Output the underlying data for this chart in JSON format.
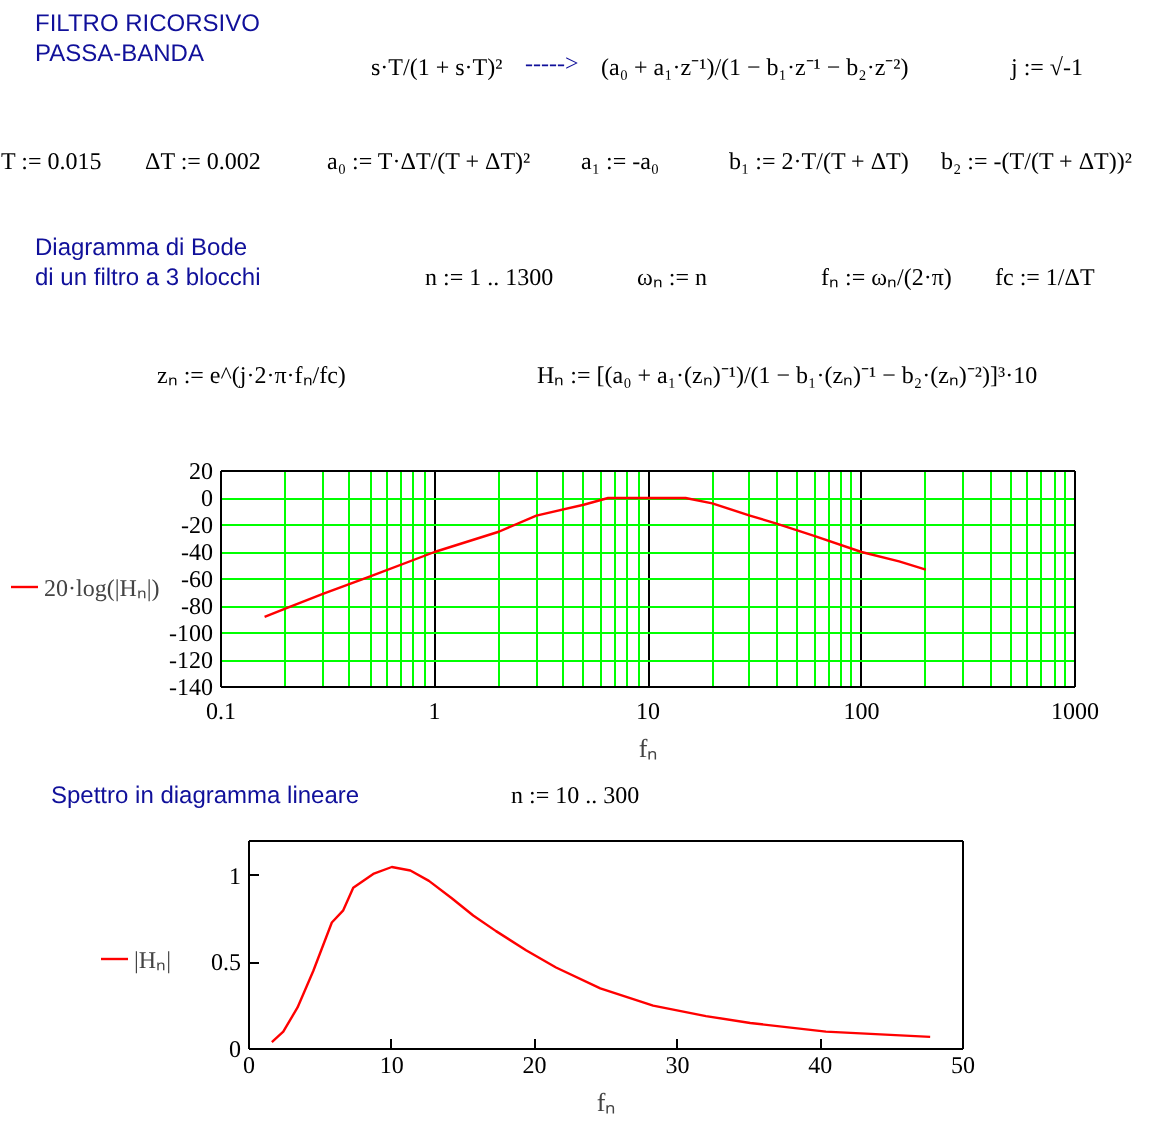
{
  "chart_data": [
    {
      "type": "line",
      "title": "FILTRO RICORSIVO\nPASSA-BANDA",
      "subtitle": "Diagramma di Bode\ndi un filtro a 3 blocchi",
      "xlabel": "fₙ",
      "annotations": [
        "s·T/(1 + s·T)²",
        "----->",
        "(a₀ + a₁·z⁻¹)/(1 − b₁·z⁻¹ − b₂·z⁻²)",
        "j := √-1",
        "T := 0.015",
        "ΔT := 0.002",
        "a₀ := T·ΔT/(T + ΔT)²",
        "a₁ := -a₀",
        "b₁ := 2·T/(T + ΔT)",
        "b₂ := -(T/(T + ΔT))²",
        "n := 1 .. 1300",
        "ωₙ := n",
        "fₙ := ωₙ/(2·π)",
        "fc := 1/ΔT",
        "zₙ := e^(j·2·π·fₙ/fc)",
        "Hₙ := [(a₀ + a₁·(zₙ)⁻¹)/(1 − b₁·(zₙ)⁻¹ − b₂·(zₙ)⁻²)]³·10"
      ],
      "x": [
        0.16,
        0.2,
        0.3,
        0.5,
        1,
        2,
        3,
        5,
        6.5,
        10,
        15,
        20,
        30,
        40,
        60,
        100,
        150,
        200
      ],
      "series": [
        {
          "name": "20·log(|Hₙ|)",
          "color": "#ff0000",
          "values": [
            -88,
            -82,
            -71,
            -58,
            -40,
            -25,
            -13,
            -5,
            0,
            0,
            0,
            -4,
            -13,
            -19,
            -28,
            -40,
            -47,
            -53
          ]
        }
      ],
      "log": "x",
      "xlim": [
        0.1,
        1000
      ],
      "xticks": [
        0.1,
        1,
        10,
        100,
        1000
      ],
      "ylim": [
        -140,
        20
      ],
      "yticks": [
        -140,
        -120,
        -100,
        -80,
        -60,
        -40,
        -20,
        0,
        20
      ],
      "grid": true,
      "legend": "left"
    },
    {
      "type": "line",
      "title": "Spettro in diagramma lineare",
      "xlabel": "fₙ",
      "annotations": [
        "n := 10 .. 300"
      ],
      "x": [
        1.6,
        2.4,
        3.4,
        4.5,
        5.8,
        6.6,
        7.3,
        8.7,
        10,
        11.3,
        12.6,
        14.2,
        15.7,
        17.3,
        19.4,
        21.5,
        24.6,
        28.3,
        32,
        35.1,
        40.4,
        47.7
      ],
      "series": [
        {
          "name": "|Hₙ|",
          "color": "#ff0000",
          "values": [
            0.04,
            0.1,
            0.24,
            0.45,
            0.73,
            0.8,
            0.93,
            1.01,
            1.05,
            1.03,
            0.97,
            0.87,
            0.77,
            0.68,
            0.57,
            0.47,
            0.35,
            0.25,
            0.19,
            0.15,
            0.1,
            0.07
          ]
        }
      ],
      "xlim": [
        0,
        50
      ],
      "xticks": [
        0,
        10,
        20,
        30,
        40,
        50
      ],
      "ylim": [
        0,
        1.2
      ],
      "yticks": [
        0,
        0.5,
        1
      ],
      "grid": false,
      "legend": "left"
    }
  ]
}
